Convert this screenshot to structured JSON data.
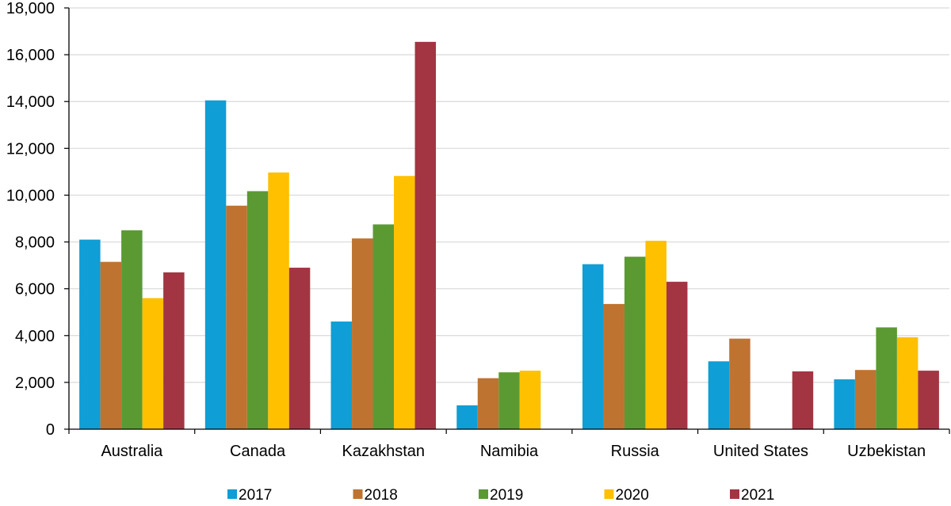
{
  "chart_data": {
    "type": "bar",
    "title": "",
    "xlabel": "",
    "ylabel": "",
    "ylim": [
      0,
      18000
    ],
    "yticks": [
      0,
      2000,
      4000,
      6000,
      8000,
      10000,
      12000,
      14000,
      16000,
      18000
    ],
    "ytick_labels": [
      "0",
      "2,000",
      "4,000",
      "6,000",
      "8,000",
      "10,000",
      "12,000",
      "14,000",
      "16,000",
      "18,000"
    ],
    "grid": true,
    "legend_position": "bottom",
    "categories": [
      "Australia",
      "Canada",
      "Kazakhstan",
      "Namibia",
      "Russia",
      "United States",
      "Uzbekistan"
    ],
    "series": [
      {
        "name": "2017",
        "color": "#0F9ED5",
        "values": [
          8100,
          14050,
          4600,
          1020,
          7050,
          2900,
          2130
        ]
      },
      {
        "name": "2018",
        "color": "#BE7330",
        "values": [
          7150,
          9550,
          8150,
          2180,
          5350,
          3870,
          2530
        ]
      },
      {
        "name": "2019",
        "color": "#5B9A32",
        "values": [
          8500,
          10170,
          8750,
          2430,
          7370,
          0,
          4350
        ]
      },
      {
        "name": "2020",
        "color": "#FFC000",
        "values": [
          5600,
          10970,
          10820,
          2500,
          8050,
          0,
          3930
        ]
      },
      {
        "name": "2021",
        "color": "#A33543",
        "values": [
          6700,
          6900,
          16550,
          0,
          6300,
          2470,
          2500
        ]
      }
    ]
  }
}
